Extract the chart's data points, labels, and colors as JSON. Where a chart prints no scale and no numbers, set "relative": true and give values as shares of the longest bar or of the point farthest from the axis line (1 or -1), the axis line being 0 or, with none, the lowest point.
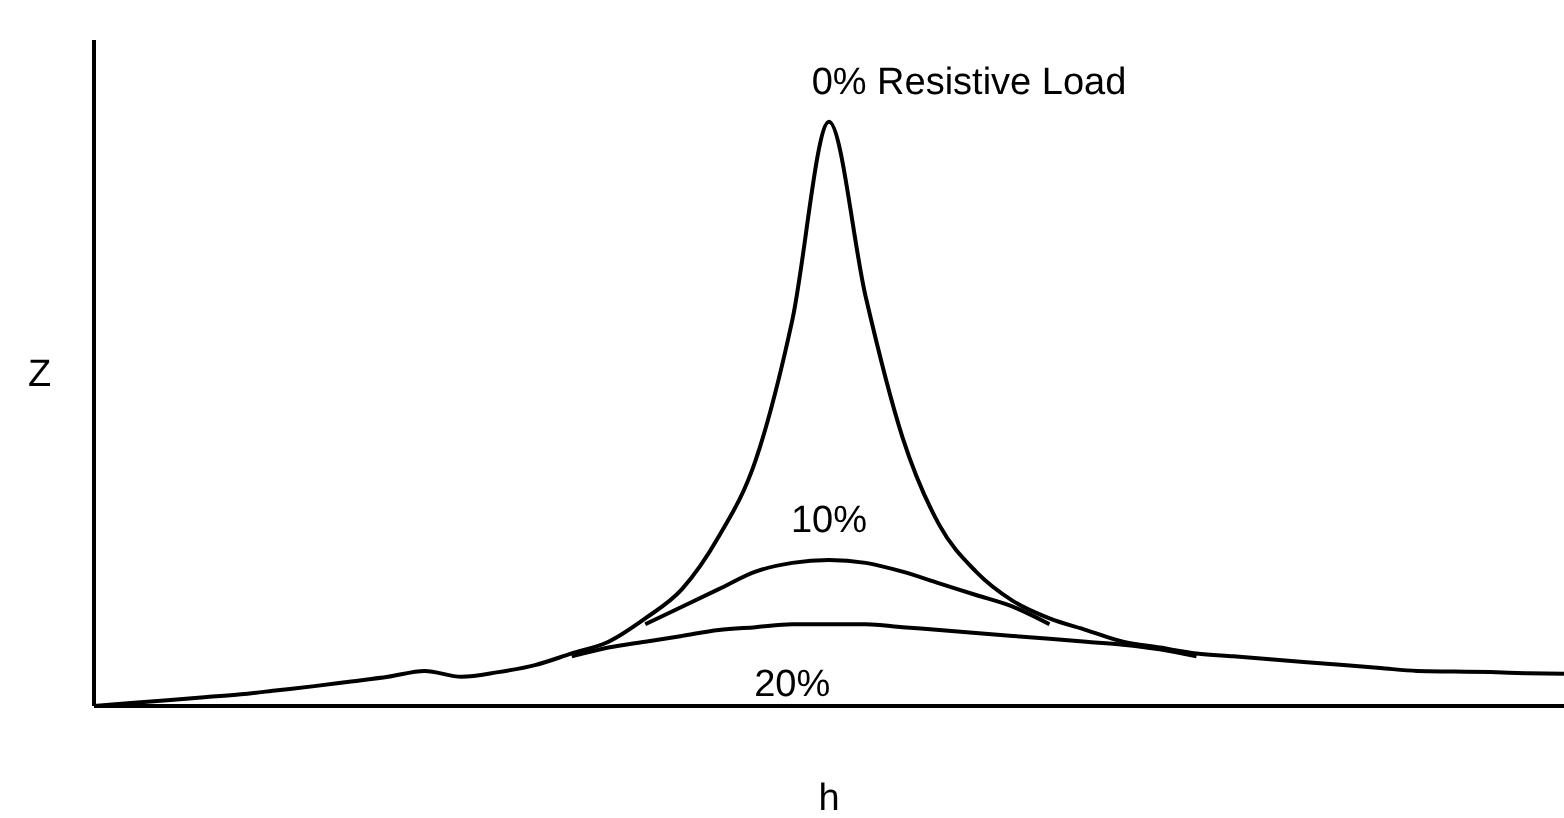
{
  "chart_data": {
    "type": "line",
    "xlabel": "h",
    "ylabel": "Z",
    "relative": true,
    "categories": [
      null,
      null,
      null,
      null,
      null,
      null,
      null,
      null,
      null,
      null,
      null,
      null,
      null,
      null,
      null,
      null,
      null,
      null,
      null,
      null,
      null,
      null,
      null,
      null,
      null,
      null,
      null,
      null,
      null,
      null,
      null,
      null,
      null,
      null,
      null,
      null,
      null,
      null,
      null,
      null,
      null
    ],
    "series": [
      {
        "name": "0% Resistive Load",
        "color": "#000000",
        "values": [
          0,
          0.005,
          0.01,
          0.015,
          0.02,
          0.027,
          0.034,
          0.042,
          0.05,
          0.06,
          0.05,
          0.058,
          0.07,
          0.09,
          0.11,
          0.15,
          0.2,
          0.29,
          0.42,
          0.66,
          1,
          0.7,
          0.46,
          0.31,
          0.23,
          0.18,
          0.15,
          0.13,
          0.11,
          0.1,
          0.09,
          0.085,
          0.08,
          0.075,
          0.07,
          0.065,
          0.06,
          0.059,
          0.058,
          0.056,
          0.055
        ]
      },
      {
        "name": "10%",
        "color": "#000000",
        "values": [
          null,
          null,
          null,
          null,
          null,
          null,
          null,
          null,
          null,
          null,
          null,
          null,
          null,
          null,
          null,
          0.14,
          0.17,
          0.2,
          0.23,
          0.245,
          0.25,
          0.245,
          0.23,
          0.21,
          0.19,
          0.17,
          0.14,
          null,
          null,
          null,
          null,
          null,
          null,
          null,
          null,
          null,
          null,
          null,
          null,
          null,
          null
        ]
      },
      {
        "name": "20%",
        "color": "#000000",
        "values": [
          null,
          null,
          null,
          null,
          null,
          null,
          null,
          null,
          null,
          null,
          null,
          null,
          null,
          0.085,
          0.1,
          0.11,
          0.12,
          0.13,
          0.135,
          0.14,
          0.14,
          0.14,
          0.135,
          0.13,
          0.125,
          0.12,
          0.115,
          0.11,
          0.105,
          0.097,
          0.085,
          null,
          null,
          null,
          null,
          null,
          null,
          null,
          null,
          null,
          null
        ]
      }
    ]
  }
}
